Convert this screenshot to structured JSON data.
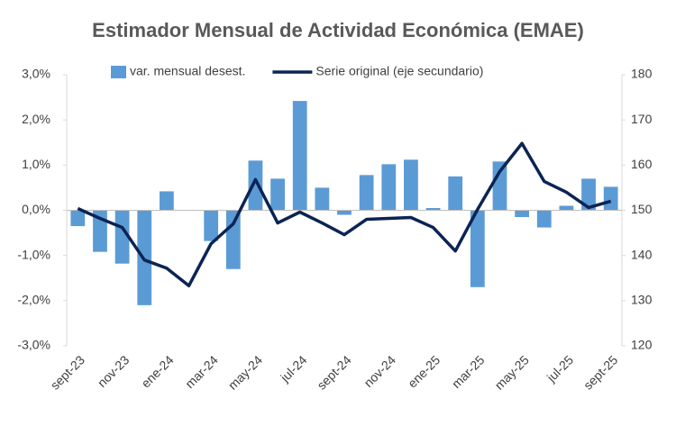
{
  "chart_data": {
    "type": "bar_line",
    "title": "Estimador Mensual de Actividad Económica (EMAE)",
    "categories": [
      "sept-23",
      null,
      "nov-23",
      null,
      "ene-24",
      null,
      "mar-24",
      null,
      "may-24",
      null,
      "jul-24",
      null,
      "sept-24",
      null,
      "nov-24",
      null,
      "ene-25",
      null,
      "mar-25",
      null,
      "may-25",
      null,
      "jul-25",
      null,
      "sept-25"
    ],
    "series": [
      {
        "name": "var. mensual desest.",
        "color": "#5b9bd5",
        "type": "bar",
        "axis": "y",
        "values": [
          -0.35,
          -0.92,
          -1.18,
          -2.1,
          0.42,
          0.0,
          -0.68,
          -1.3,
          1.1,
          0.7,
          2.42,
          0.5,
          -0.1,
          0.78,
          1.02,
          1.12,
          0.05,
          0.75,
          -1.7,
          1.08,
          -0.15,
          -0.38,
          0.1,
          0.7,
          0.52
        ]
      },
      {
        "name": "Serie original (eje secundario)",
        "color": "#0b2454",
        "type": "line",
        "axis": "y2",
        "values": [
          150.4,
          148.2,
          146.2,
          139,
          137.2,
          133.3,
          142.6,
          147,
          156.8,
          147.2,
          149.6,
          147.2,
          144.6,
          148,
          148.2,
          148.4,
          146.2,
          141,
          150.2,
          158.6,
          164.8,
          156.4,
          154,
          150.6,
          152
        ]
      }
    ],
    "ylim": [
      -3,
      3
    ],
    "yticks": [
      {
        "value": -3,
        "label": "-3,0%"
      },
      {
        "value": -2,
        "label": "-2,0%"
      },
      {
        "value": -1,
        "label": "-1,0%"
      },
      {
        "value": 0,
        "label": "0,0%"
      },
      {
        "value": 1,
        "label": "1,0%"
      },
      {
        "value": 2,
        "label": "2,0%"
      },
      {
        "value": 3,
        "label": "3,0%"
      }
    ],
    "y2lim": [
      120,
      180
    ],
    "y2ticks": [
      120,
      130,
      140,
      150,
      160,
      170,
      180
    ],
    "legend": "top",
    "grid": false
  }
}
